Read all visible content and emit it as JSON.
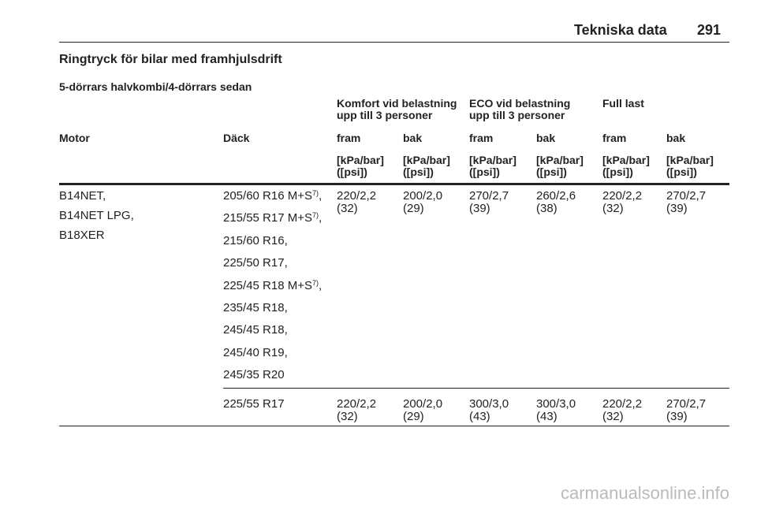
{
  "header": {
    "title": "Tekniska data",
    "page": "291"
  },
  "heading": "Ringtryck för bilar med framhjulsdrift",
  "subheading": "5-dörrars halvkombi/4-dörrars sedan",
  "table": {
    "groups": [
      [
        "Komfort vid belastning",
        "upp till 3 personer"
      ],
      [
        "ECO vid belastning",
        "upp till 3 personer"
      ],
      [
        "Full last"
      ]
    ],
    "columns": [
      "Motor",
      "Däck",
      "fram",
      "bak",
      "fram",
      "bak",
      "fram",
      "bak"
    ],
    "units": [
      [
        "[kPa/bar]",
        "([psi])"
      ],
      [
        "[kPa/bar]",
        "([psi])"
      ],
      [
        "[kPa/bar]",
        "([psi])"
      ],
      [
        "[kPa/bar]",
        "([psi])"
      ],
      [
        "[kPa/bar]",
        "([psi])"
      ],
      [
        "[kPa/bar]",
        "([psi])"
      ]
    ],
    "rows": [
      {
        "motor": [
          "B14NET,",
          "B14NET LPG,",
          "B18XER"
        ],
        "tyres": [
          {
            "text": "205/60 R16 M+S",
            "note": "7)",
            "suffix": ","
          },
          {
            "text": "215/55 R17 M+S",
            "note": "7)",
            "suffix": ","
          },
          {
            "text": "215/60 R16,"
          },
          {
            "text": "225/50 R17,"
          },
          {
            "text": "225/45 R18 M+S",
            "note": "7)",
            "suffix": ","
          },
          {
            "text": "235/45 R18,"
          },
          {
            "text": "245/45 R18,"
          },
          {
            "text": "245/40 R19,"
          },
          {
            "text": "245/35 R20"
          }
        ],
        "values": [
          [
            "220/2,2",
            "(32)"
          ],
          [
            "200/2,0",
            "(29)"
          ],
          [
            "270/2,7",
            "(39)"
          ],
          [
            "260/2,6",
            "(38)"
          ],
          [
            "220/2,2",
            "(32)"
          ],
          [
            "270/2,7",
            "(39)"
          ]
        ]
      },
      {
        "motor": [],
        "tyres": [
          {
            "text": "225/55 R17"
          }
        ],
        "values": [
          [
            "220/2,2",
            "(32)"
          ],
          [
            "200/2,0",
            "(29)"
          ],
          [
            "300/3,0",
            "(43)"
          ],
          [
            "300/3,0",
            "(43)"
          ],
          [
            "220/2,2",
            "(32)"
          ],
          [
            "270/2,7",
            "(39)"
          ]
        ]
      }
    ]
  },
  "footer": "carmanualsonline.info"
}
